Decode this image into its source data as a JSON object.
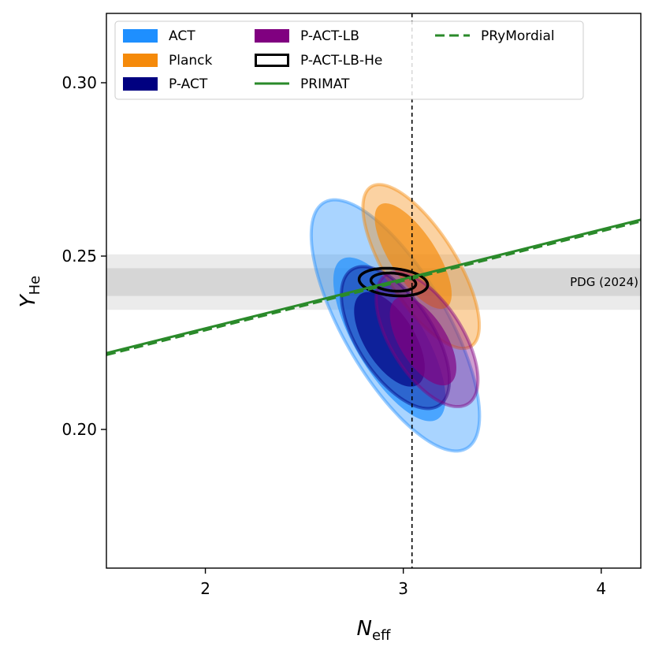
{
  "chart_data": {
    "type": "contour",
    "xlabel_main": "N",
    "xlabel_sub": "eff",
    "ylabel_main": "Y",
    "ylabel_sub": "He",
    "xlim": [
      1.5,
      4.2
    ],
    "ylim": [
      0.16,
      0.32
    ],
    "xticks": [
      2,
      3,
      4
    ],
    "xtick_labels": [
      "2",
      "3",
      "4"
    ],
    "yticks": [
      0.2,
      0.25,
      0.3
    ],
    "ytick_labels": [
      "0.20",
      "0.25",
      "0.30"
    ],
    "reference_line": {
      "x": 3.044,
      "style": "dashed"
    },
    "pdg_band": {
      "label": "PDG (2024)",
      "center": 0.2425,
      "sigma": 0.004
    },
    "bbn_lines": [
      {
        "name": "PRIMAT",
        "style": "solid",
        "color": "#2a8a2a",
        "points": [
          [
            1.5,
            0.222
          ],
          [
            4.2,
            0.2605
          ]
        ]
      },
      {
        "name": "PRyMordial",
        "style": "dashed",
        "color": "#2a8a2a",
        "points": [
          [
            1.5,
            0.2215
          ],
          [
            4.2,
            0.26
          ]
        ]
      }
    ],
    "contours": [
      {
        "name": "ACT",
        "color": "#1e8fff",
        "outer": {
          "cx": 2.96,
          "cy": 0.23,
          "sx": 0.405,
          "sy": 0.0345,
          "rho": -0.72
        },
        "inner": {
          "cx": 2.93,
          "cy": 0.226,
          "sx": 0.27,
          "sy": 0.0225,
          "rho": -0.72
        }
      },
      {
        "name": "Planck",
        "color": "#f58a0a",
        "outer": {
          "cx": 3.09,
          "cy": 0.247,
          "sx": 0.28,
          "sy": 0.0225,
          "rho": -0.72
        },
        "inner": {
          "cx": 3.05,
          "cy": 0.25,
          "sx": 0.185,
          "sy": 0.0145,
          "rho": -0.72
        }
      },
      {
        "name": "P-ACT",
        "color": "#000080",
        "outer": {
          "cx": 2.96,
          "cy": 0.2265,
          "sx": 0.26,
          "sy": 0.0195,
          "rho": -0.6
        },
        "inner": {
          "cx": 2.93,
          "cy": 0.226,
          "sx": 0.17,
          "sy": 0.013,
          "rho": -0.6
        }
      },
      {
        "name": "P-ACT-LB",
        "color": "#800080",
        "outer": {
          "cx": 3.12,
          "cy": 0.226,
          "sx": 0.245,
          "sy": 0.0185,
          "rho": -0.6
        },
        "inner": {
          "cx": 3.1,
          "cy": 0.2255,
          "sx": 0.16,
          "sy": 0.0122,
          "rho": -0.6
        }
      },
      {
        "name": "P-ACT-LB-He",
        "color": "#000000",
        "outline": true,
        "outer": {
          "cx": 2.95,
          "cy": 0.2425,
          "sx": 0.165,
          "sy": 0.0038,
          "rho": -0.2
        },
        "inner": {
          "cx": 2.95,
          "cy": 0.2425,
          "sx": 0.108,
          "sy": 0.0025,
          "rho": -0.2
        }
      }
    ],
    "legend": [
      {
        "label": "ACT",
        "kind": "patch",
        "color": "#1e8fff"
      },
      {
        "label": "Planck",
        "kind": "patch",
        "color": "#f58a0a"
      },
      {
        "label": "P-ACT",
        "kind": "patch",
        "color": "#000080"
      },
      {
        "label": "P-ACT-LB",
        "kind": "patch",
        "color": "#800080"
      },
      {
        "label": "P-ACT-LB-He",
        "kind": "outline",
        "color": "#000000"
      },
      {
        "label": "PRIMAT",
        "kind": "line",
        "color": "#2a8a2a"
      },
      {
        "label": "PRyMordial",
        "kind": "dashed",
        "color": "#2a8a2a"
      }
    ]
  }
}
